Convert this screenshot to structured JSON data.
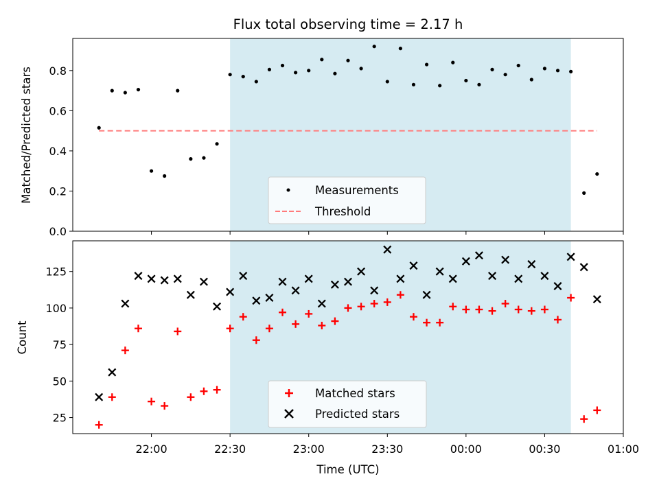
{
  "chart_data": [
    {
      "type": "scatter",
      "title": "Flux total observing time = 2.17 h",
      "ylabel": "Matched/Predicted stars",
      "ylim": [
        0,
        0.96
      ],
      "yticks": [
        0.0,
        0.2,
        0.4,
        0.6,
        0.8
      ],
      "ytick_labels": [
        "0.0",
        "0.2",
        "0.4",
        "0.6",
        "0.8"
      ],
      "xlim_minutes": [
        1290,
        1500
      ],
      "shaded_region": {
        "from": "22:30",
        "to": "00:40",
        "color": "#add8e6"
      },
      "legend": {
        "position": "lower center",
        "entries": [
          "Measurements",
          "Threshold"
        ]
      },
      "series": [
        {
          "name": "Measurements",
          "marker": "dot",
          "color": "#000000",
          "x": [
            "21:40",
            "21:45",
            "21:50",
            "21:55",
            "22:00",
            "22:05",
            "22:10",
            "22:15",
            "22:20",
            "22:25",
            "22:30",
            "22:35",
            "22:40",
            "22:45",
            "22:50",
            "22:55",
            "23:00",
            "23:05",
            "23:10",
            "23:15",
            "23:20",
            "23:25",
            "23:30",
            "23:35",
            "23:40",
            "23:45",
            "23:50",
            "23:55",
            "00:00",
            "00:05",
            "00:10",
            "00:15",
            "00:20",
            "00:25",
            "00:30",
            "00:35",
            "00:40",
            "00:45",
            "00:50"
          ],
          "y": [
            0.515,
            0.7,
            0.69,
            0.705,
            0.3,
            0.275,
            0.7,
            0.36,
            0.365,
            0.435,
            0.78,
            0.77,
            0.745,
            0.805,
            0.825,
            0.79,
            0.8,
            0.855,
            0.785,
            0.85,
            0.81,
            0.92,
            0.745,
            0.91,
            0.73,
            0.83,
            0.725,
            0.84,
            0.75,
            0.73,
            0.805,
            0.78,
            0.825,
            0.755,
            0.81,
            0.8,
            0.795,
            0.19,
            0.285
          ]
        },
        {
          "name": "Threshold",
          "style": "dashed",
          "color": "#ff7b7b",
          "x": [
            "21:40",
            "00:50"
          ],
          "y": [
            0.5,
            0.5
          ]
        }
      ]
    },
    {
      "type": "scatter",
      "ylabel": "Count",
      "xlabel": "Time (UTC)",
      "ylim": [
        14,
        146
      ],
      "yticks": [
        25,
        50,
        75,
        100,
        125
      ],
      "ytick_labels": [
        "25",
        "50",
        "75",
        "100",
        "125"
      ],
      "xlim_minutes": [
        1290,
        1500
      ],
      "xticks_minutes": [
        1320,
        1350,
        1380,
        1410,
        1440,
        1470,
        1500
      ],
      "xtick_labels": [
        "22:00",
        "22:30",
        "23:00",
        "23:30",
        "00:00",
        "00:30",
        "01:00"
      ],
      "shaded_region": {
        "from": "22:30",
        "to": "00:40",
        "color": "#add8e6"
      },
      "legend": {
        "position": "lower center",
        "entries": [
          "Matched stars",
          "Predicted stars"
        ]
      },
      "series": [
        {
          "name": "Matched stars",
          "marker": "plus",
          "color": "#ff0000",
          "x": [
            "21:40",
            "21:45",
            "21:50",
            "21:55",
            "22:00",
            "22:05",
            "22:10",
            "22:15",
            "22:20",
            "22:25",
            "22:30",
            "22:35",
            "22:40",
            "22:45",
            "22:50",
            "22:55",
            "23:00",
            "23:05",
            "23:10",
            "23:15",
            "23:20",
            "23:25",
            "23:30",
            "23:35",
            "23:40",
            "23:45",
            "23:50",
            "23:55",
            "00:00",
            "00:05",
            "00:10",
            "00:15",
            "00:20",
            "00:25",
            "00:30",
            "00:35",
            "00:40",
            "00:45",
            "00:50"
          ],
          "y": [
            20,
            39,
            71,
            86,
            36,
            33,
            84,
            39,
            43,
            44,
            86,
            94,
            78,
            86,
            97,
            89,
            96,
            88,
            91,
            100,
            101,
            103,
            104,
            109,
            94,
            90,
            90,
            101,
            99,
            99,
            98,
            103,
            99,
            98,
            99,
            92,
            107,
            24,
            30
          ]
        },
        {
          "name": "Predicted stars",
          "marker": "x",
          "color": "#000000",
          "x": [
            "21:40",
            "21:45",
            "21:50",
            "21:55",
            "22:00",
            "22:05",
            "22:10",
            "22:15",
            "22:20",
            "22:25",
            "22:30",
            "22:35",
            "22:40",
            "22:45",
            "22:50",
            "22:55",
            "23:00",
            "23:05",
            "23:10",
            "23:15",
            "23:20",
            "23:25",
            "23:30",
            "23:35",
            "23:40",
            "23:45",
            "23:50",
            "23:55",
            "00:00",
            "00:05",
            "00:10",
            "00:15",
            "00:20",
            "00:25",
            "00:30",
            "00:35",
            "00:40",
            "00:45",
            "00:50"
          ],
          "y": [
            39,
            56,
            103,
            122,
            120,
            119,
            120,
            109,
            118,
            101,
            111,
            122,
            105,
            107,
            118,
            112,
            120,
            103,
            116,
            118,
            125,
            112,
            140,
            120,
            129,
            109,
            125,
            120,
            132,
            136,
            122,
            133,
            120,
            130,
            122,
            115,
            135,
            128,
            106
          ]
        }
      ]
    }
  ]
}
